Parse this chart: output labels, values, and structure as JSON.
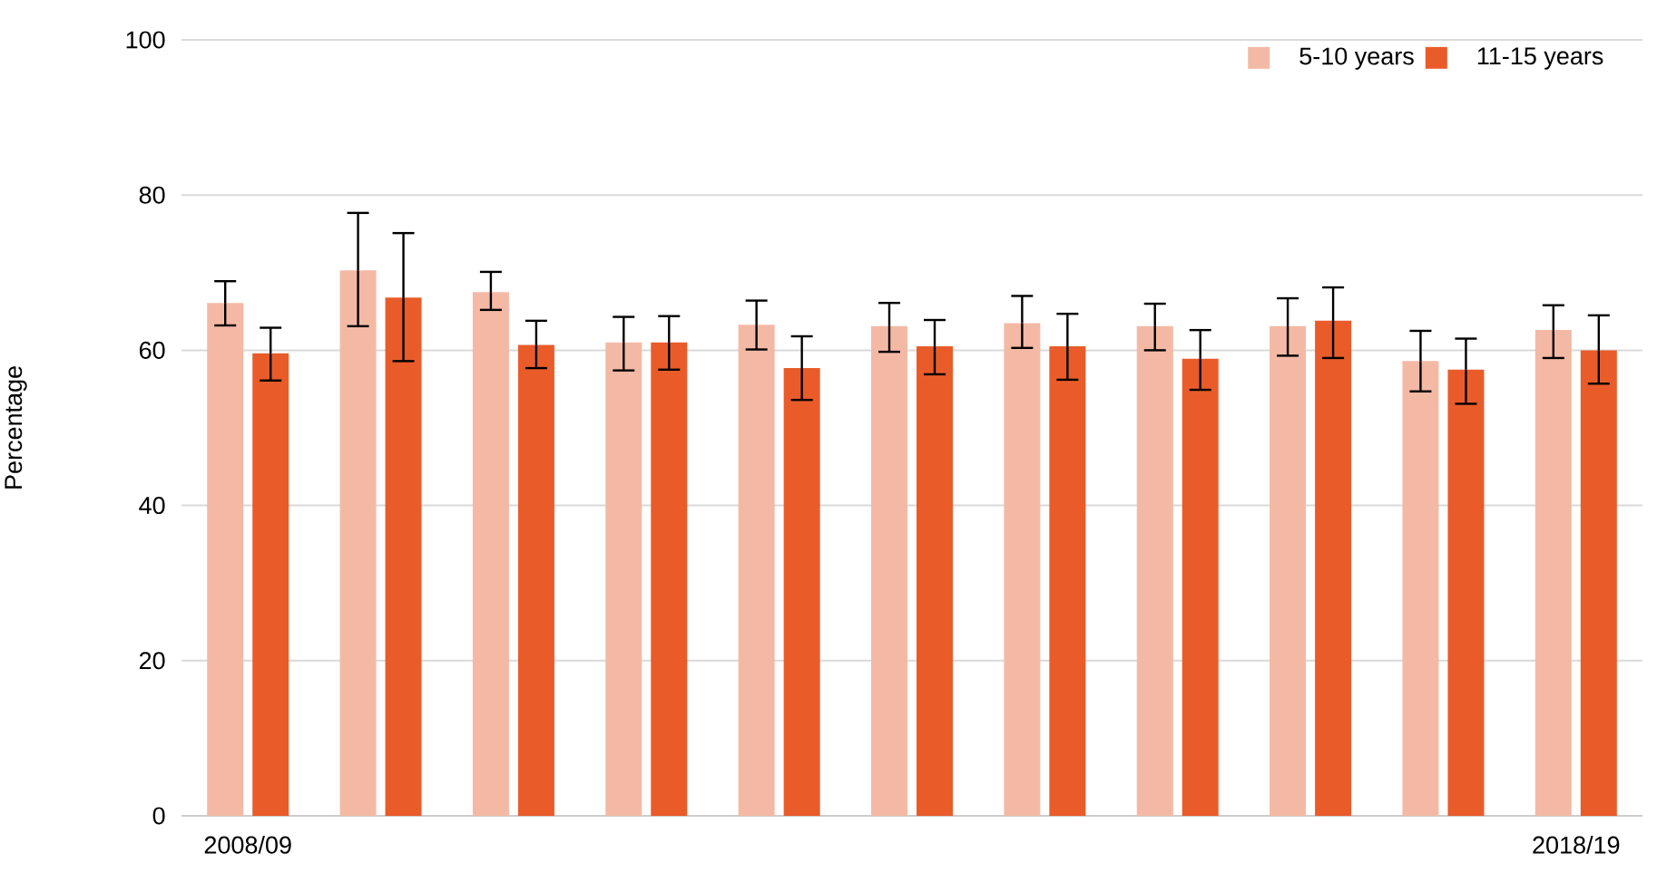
{
  "chart_data": {
    "type": "bar",
    "ylabel": "Percentage",
    "categories": [
      "2008/09",
      null,
      null,
      null,
      null,
      null,
      null,
      null,
      null,
      null,
      "2018/19"
    ],
    "series": [
      {
        "name": "5-10 years",
        "color": "#f4b9a5",
        "values": [
          66.1,
          70.3,
          67.5,
          61.0,
          63.3,
          63.1,
          63.5,
          63.1,
          63.1,
          58.6,
          62.6
        ],
        "errors": [
          [
            63.2,
            68.9
          ],
          [
            63.1,
            77.7
          ],
          [
            65.2,
            70.1
          ],
          [
            57.4,
            64.3
          ],
          [
            60.1,
            66.4
          ],
          [
            59.8,
            66.1
          ],
          [
            60.3,
            67.0
          ],
          [
            60.0,
            66.0
          ],
          [
            59.3,
            66.7
          ],
          [
            54.7,
            62.5
          ],
          [
            59.0,
            65.8
          ]
        ]
      },
      {
        "name": "11-15 years",
        "color": "#e95c2a",
        "values": [
          59.6,
          66.8,
          60.7,
          61.0,
          57.7,
          60.5,
          60.5,
          58.9,
          63.8,
          57.5,
          60.0
        ],
        "errors": [
          [
            56.1,
            62.9
          ],
          [
            58.6,
            75.1
          ],
          [
            57.7,
            63.8
          ],
          [
            57.5,
            64.4
          ],
          [
            53.6,
            61.8
          ],
          [
            56.9,
            63.9
          ],
          [
            56.2,
            64.7
          ],
          [
            54.9,
            62.6
          ],
          [
            59.0,
            68.1
          ],
          [
            53.1,
            61.5
          ],
          [
            55.7,
            64.5
          ]
        ]
      }
    ],
    "ylim": [
      0,
      100
    ],
    "yticks": [
      0,
      20,
      40,
      60,
      80,
      100
    ],
    "grid": "y",
    "legend": "top right"
  }
}
